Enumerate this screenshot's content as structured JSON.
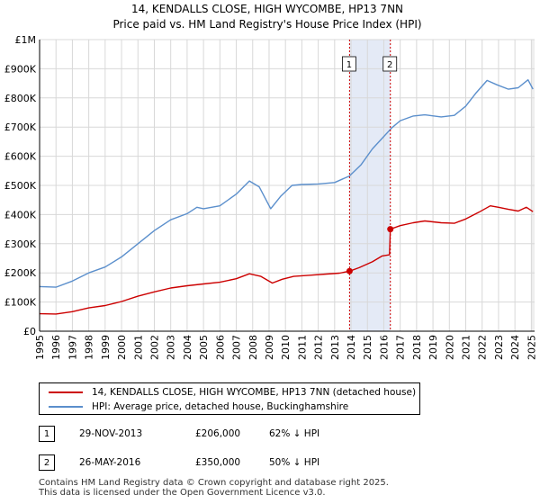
{
  "chart_data": {
    "type": "line",
    "title": "14, KENDALLS CLOSE, HIGH WYCOMBE, HP13 7NN",
    "subtitle": "Price paid vs. HM Land Registry's House Price Index (HPI)",
    "xlabel": "",
    "ylabel": "",
    "xlim": [
      1995,
      2025.2
    ],
    "ylim": [
      0,
      1000000
    ],
    "grid": true,
    "x_ticks": [
      1995,
      1996,
      1997,
      1998,
      1999,
      2000,
      2001,
      2002,
      2003,
      2004,
      2005,
      2006,
      2007,
      2008,
      2009,
      2010,
      2011,
      2012,
      2013,
      2014,
      2015,
      2016,
      2017,
      2018,
      2019,
      2020,
      2021,
      2022,
      2023,
      2024,
      2025
    ],
    "y_ticks": [
      {
        "value": 0,
        "label": "£0"
      },
      {
        "value": 100000,
        "label": "£100K"
      },
      {
        "value": 200000,
        "label": "£200K"
      },
      {
        "value": 300000,
        "label": "£300K"
      },
      {
        "value": 400000,
        "label": "£400K"
      },
      {
        "value": 500000,
        "label": "£500K"
      },
      {
        "value": 600000,
        "label": "£600K"
      },
      {
        "value": 700000,
        "label": "£700K"
      },
      {
        "value": 800000,
        "label": "£800K"
      },
      {
        "value": 900000,
        "label": "£900K"
      },
      {
        "value": 1000000,
        "label": "£1M"
      }
    ],
    "series": [
      {
        "name": "14, KENDALLS CLOSE, HIGH WYCOMBE, HP13 7NN (detached house)",
        "color": "#cc0000",
        "points": [
          [
            1995,
            60000
          ],
          [
            1996,
            59000
          ],
          [
            1997,
            67000
          ],
          [
            1998,
            80000
          ],
          [
            1999,
            88000
          ],
          [
            2000,
            102000
          ],
          [
            2001,
            120000
          ],
          [
            2002,
            135000
          ],
          [
            2003,
            148000
          ],
          [
            2004,
            156000
          ],
          [
            2005,
            162000
          ],
          [
            2006,
            168000
          ],
          [
            2007,
            180000
          ],
          [
            2007.8,
            197000
          ],
          [
            2008.5,
            188000
          ],
          [
            2009.2,
            165000
          ],
          [
            2009.8,
            178000
          ],
          [
            2010.5,
            188000
          ],
          [
            2011.5,
            192000
          ],
          [
            2012.5,
            196000
          ],
          [
            2013.3,
            199000
          ],
          [
            2013.91,
            206000
          ],
          [
            2014.5,
            218000
          ],
          [
            2015.3,
            238000
          ],
          [
            2015.9,
            258000
          ],
          [
            2016.35,
            262000
          ],
          [
            2016.4,
            350000
          ],
          [
            2017,
            362000
          ],
          [
            2017.8,
            372000
          ],
          [
            2018.5,
            378000
          ],
          [
            2019.5,
            372000
          ],
          [
            2020.3,
            370000
          ],
          [
            2021,
            385000
          ],
          [
            2021.8,
            408000
          ],
          [
            2022.5,
            430000
          ],
          [
            2023,
            425000
          ],
          [
            2023.6,
            418000
          ],
          [
            2024.2,
            412000
          ],
          [
            2024.7,
            425000
          ],
          [
            2025.1,
            410000
          ]
        ]
      },
      {
        "name": "HPI: Average price, detached house, Buckinghamshire",
        "color": "#5b8fcc",
        "points": [
          [
            1995,
            153000
          ],
          [
            1996,
            151000
          ],
          [
            1997,
            172000
          ],
          [
            1998,
            200000
          ],
          [
            1999,
            220000
          ],
          [
            2000,
            255000
          ],
          [
            2001,
            300000
          ],
          [
            2002,
            345000
          ],
          [
            2003,
            382000
          ],
          [
            2004,
            403000
          ],
          [
            2004.6,
            425000
          ],
          [
            2005,
            420000
          ],
          [
            2006,
            430000
          ],
          [
            2007,
            470000
          ],
          [
            2007.8,
            515000
          ],
          [
            2008.4,
            495000
          ],
          [
            2009.1,
            420000
          ],
          [
            2009.7,
            462000
          ],
          [
            2010.4,
            500000
          ],
          [
            2011,
            503000
          ],
          [
            2012,
            505000
          ],
          [
            2013,
            510000
          ],
          [
            2013.9,
            532000
          ],
          [
            2014.6,
            570000
          ],
          [
            2015.3,
            625000
          ],
          [
            2016,
            668000
          ],
          [
            2016.5,
            698000
          ],
          [
            2017,
            722000
          ],
          [
            2017.8,
            738000
          ],
          [
            2018.5,
            742000
          ],
          [
            2019.5,
            735000
          ],
          [
            2020.3,
            740000
          ],
          [
            2021,
            772000
          ],
          [
            2021.6,
            815000
          ],
          [
            2022.3,
            860000
          ],
          [
            2022.9,
            845000
          ],
          [
            2023.6,
            830000
          ],
          [
            2024.2,
            835000
          ],
          [
            2024.8,
            862000
          ],
          [
            2025.1,
            830000
          ]
        ]
      }
    ],
    "sales": [
      {
        "label": "1",
        "x": 2013.91,
        "y": 206000
      },
      {
        "label": "2",
        "x": 2016.4,
        "y": 350000
      }
    ],
    "shaded_span": [
      2013.91,
      2016.4
    ]
  },
  "legend": {
    "property": "14, KENDALLS CLOSE, HIGH WYCOMBE, HP13 7NN (detached house)",
    "hpi": "HPI: Average price, detached house, Buckinghamshire"
  },
  "transactions": [
    {
      "num": "1",
      "date": "29-NOV-2013",
      "price": "£206,000",
      "hpi": "62% ↓ HPI"
    },
    {
      "num": "2",
      "date": "26-MAY-2016",
      "price": "£350,000",
      "hpi": "50% ↓ HPI"
    }
  ],
  "footer": {
    "line1": "Contains HM Land Registry data © Crown copyright and database right 2025.",
    "line2": "This data is licensed under the Open Government Licence v3.0."
  },
  "colors": {
    "property": "#cc0000",
    "hpi": "#5b8fcc",
    "shade": "#e4eaf6",
    "grid": "#d8d8d8",
    "marker_line": "#cc0000"
  }
}
